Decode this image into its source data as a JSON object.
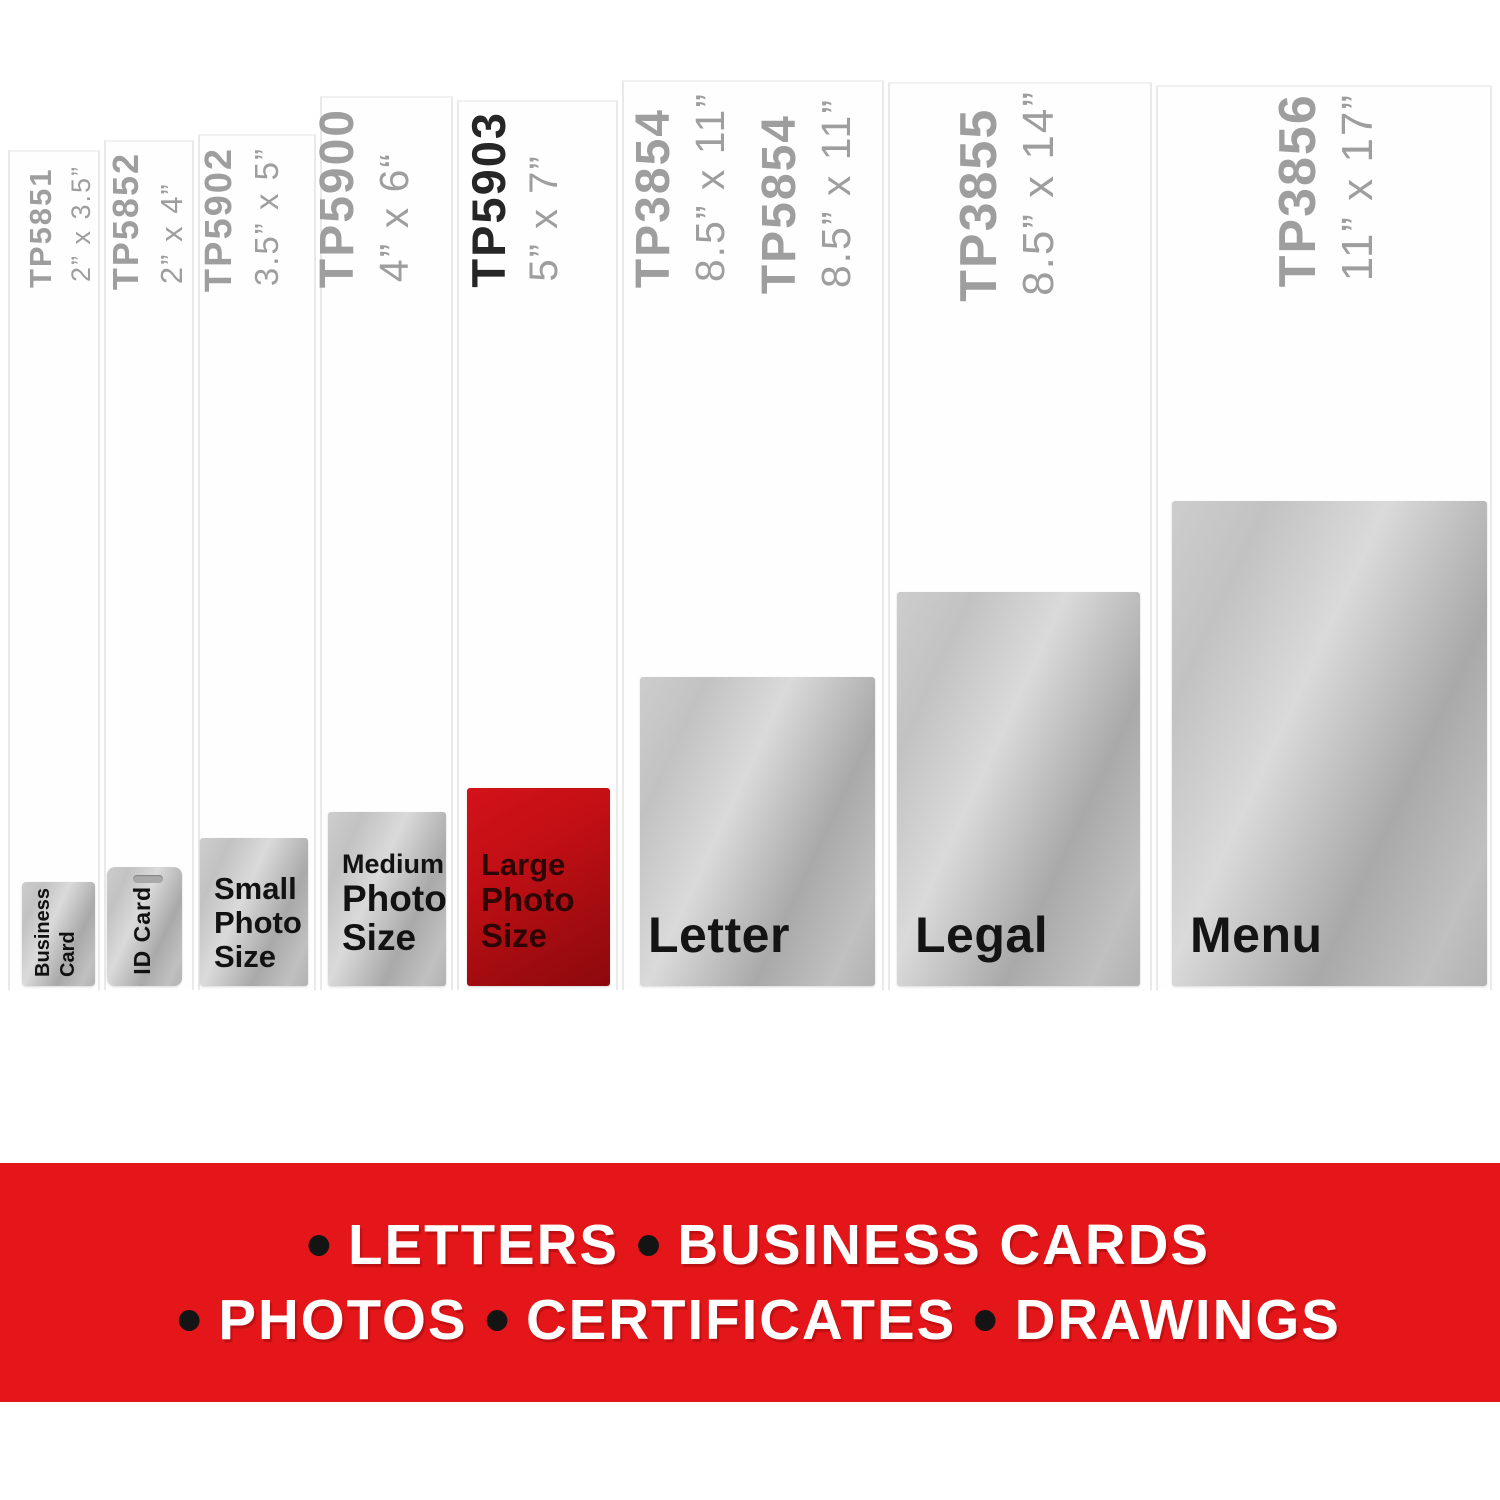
{
  "columns": [
    {
      "code": "TP5851",
      "size": "2” x 3.5”",
      "card": {
        "lines": [
          "Business",
          "Card"
        ]
      }
    },
    {
      "code": "TP5852",
      "size": "2” x 4”",
      "card": {
        "lines": [
          "ID Card"
        ]
      }
    },
    {
      "code": "TP5902",
      "size": "3.5” x 5”",
      "card": {
        "lines": [
          "Small",
          "Photo",
          "Size"
        ]
      }
    },
    {
      "code": "TP5900",
      "size": "4” x 6“",
      "card": {
        "lines": [
          "Medium",
          "Photo",
          "Size"
        ]
      }
    },
    {
      "code": "TP5903",
      "size": "5” x 7”",
      "card": {
        "lines": [
          "Large",
          "Photo",
          "Size"
        ]
      },
      "highlighted": true
    },
    {
      "codes": [
        "TP3854",
        "TP5854"
      ],
      "sizes": [
        "8.5” x 11”",
        "8.5” x 11”"
      ],
      "card": {
        "lines": [
          "Letter"
        ]
      }
    },
    {
      "code": "TP3855",
      "size": "8.5” x 14”",
      "card": {
        "lines": [
          "Legal"
        ]
      }
    },
    {
      "code": "TP3856",
      "size": "11” x 17”",
      "card": {
        "lines": [
          "Menu"
        ]
      }
    }
  ],
  "banner": {
    "line1_items": [
      "LETTERS",
      "BUSINESS CARDS"
    ],
    "line2_items": [
      "PHOTOS",
      "CERTIFICATES",
      "DRAWINGS"
    ]
  },
  "colors": {
    "banner_red": "#e41619",
    "highlight_card_red": "#c20f15",
    "label_gray": "#9e9e9e",
    "highlight_code_black": "#262626",
    "card_silver": "#c2c2c2"
  }
}
